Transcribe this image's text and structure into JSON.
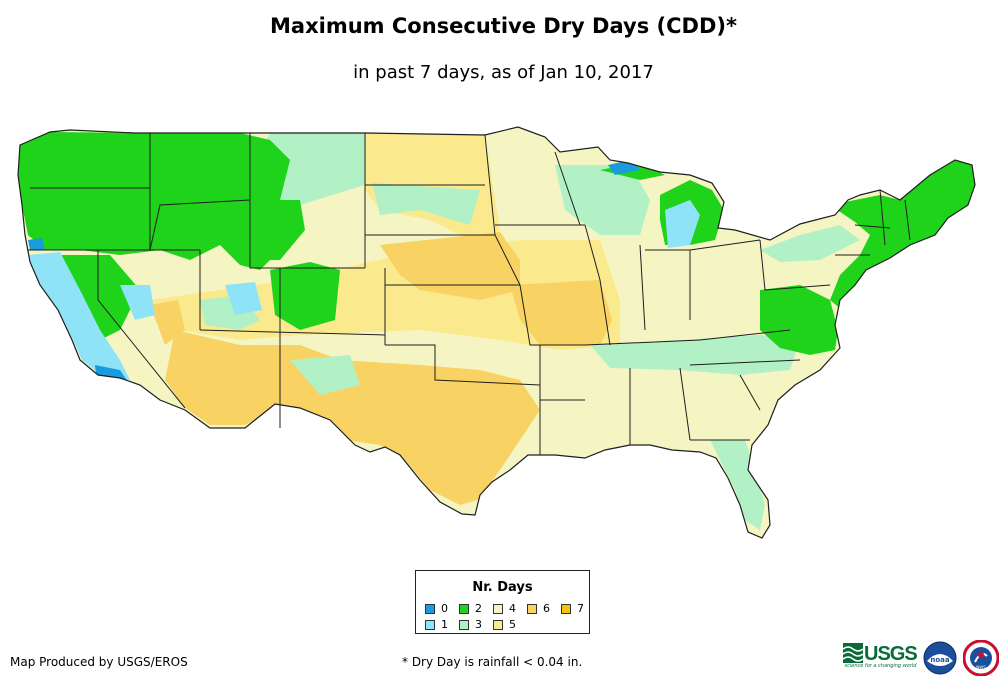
{
  "title": "Maximum Consecutive Dry Days (CDD)*",
  "subtitle": "in past 7 days, as of Jan 10, 2017",
  "legend": {
    "title": "Nr. Days",
    "items": [
      {
        "label": "0",
        "color": "#1a9be0"
      },
      {
        "label": "1",
        "color": "#8fe3f7"
      },
      {
        "label": "2",
        "color": "#1fd21a"
      },
      {
        "label": "3",
        "color": "#b2f0c6"
      },
      {
        "label": "4",
        "color": "#f5f5c4"
      },
      {
        "label": "5",
        "color": "#fbe98d"
      },
      {
        "label": "6",
        "color": "#f8d363"
      },
      {
        "label": "7",
        "color": "#f6c20e"
      }
    ]
  },
  "credit": "Map Produced by USGS/EROS",
  "footnote": "* Dry Day is rainfall < 0.04 in.",
  "logos": {
    "usgs": "USGS",
    "usgs_tagline": "science for a changing world",
    "noaa": "noaa",
    "nws": "NWS"
  },
  "colors": {
    "border": "#1e1e1e"
  }
}
